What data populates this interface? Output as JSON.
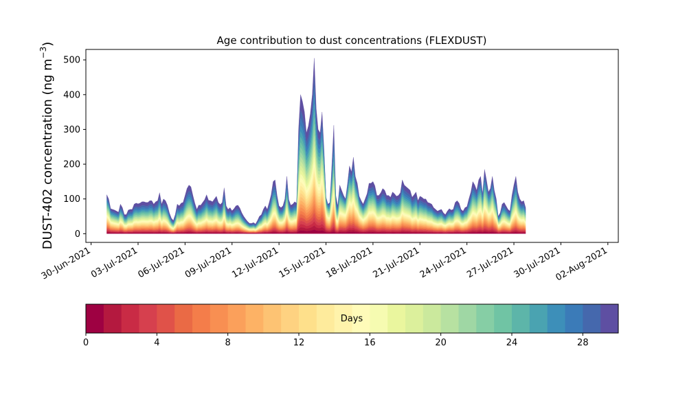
{
  "chart_data": {
    "type": "area",
    "title": "Age contribution to dust concentrations (FLEXDUST)",
    "ylabel_main": "DUST-402 concentration (ng m",
    "ylabel_exp": "−3",
    "ylabel_close": ")",
    "ylim": [
      -25,
      530
    ],
    "yticks": [
      "0",
      "100",
      "200",
      "300",
      "400",
      "500"
    ],
    "x_start": "2021-06-29T16:00",
    "x_end": "2021-08-02T16:00",
    "xticks": [
      "30-Jun-2021",
      "03-Jul-2021",
      "06-Jul-2021",
      "09-Jul-2021",
      "12-Jul-2021",
      "15-Jul-2021",
      "18-Jul-2021",
      "21-Jul-2021",
      "24-Jul-2021",
      "27-Jul-2021",
      "30-Jul-2021",
      "02-Aug-2021"
    ],
    "xtick_dates": [
      "2021-06-30",
      "2021-07-03",
      "2021-07-06",
      "2021-07-09",
      "2021-07-12",
      "2021-07-15",
      "2021-07-18",
      "2021-07-21",
      "2021-07-24",
      "2021-07-27",
      "2021-07-30",
      "2021-08-02"
    ],
    "series_start": "2021-07-01T00:00",
    "series_step_hours": 3,
    "total": [
      112,
      100,
      72,
      70,
      68,
      65,
      62,
      85,
      75,
      55,
      55,
      68,
      70,
      70,
      85,
      88,
      86,
      88,
      92,
      92,
      90,
      90,
      95,
      95,
      85,
      92,
      95,
      118,
      85,
      100,
      95,
      82,
      60,
      45,
      38,
      55,
      85,
      80,
      88,
      90,
      110,
      130,
      140,
      135,
      110,
      88,
      70,
      82,
      82,
      90,
      98,
      112,
      96,
      95,
      92,
      100,
      108,
      90,
      84,
      90,
      132,
      80,
      70,
      75,
      66,
      72,
      80,
      82,
      74,
      60,
      50,
      42,
      35,
      30,
      30,
      32,
      28,
      38,
      50,
      55,
      70,
      80,
      70,
      90,
      112,
      150,
      155,
      110,
      80,
      75,
      80,
      100,
      165,
      98,
      82,
      85,
      92,
      88,
      300,
      400,
      380,
      350,
      290,
      310,
      345,
      400,
      505,
      360,
      300,
      290,
      350,
      240,
      105,
      85,
      90,
      200,
      312,
      110,
      80,
      140,
      125,
      110,
      100,
      145,
      195,
      178,
      220,
      165,
      145,
      108,
      95,
      85,
      100,
      115,
      145,
      145,
      150,
      138,
      110,
      110,
      118,
      130,
      125,
      110,
      110,
      105,
      120,
      115,
      108,
      110,
      118,
      155,
      140,
      135,
      130,
      125,
      105,
      112,
      120,
      95,
      108,
      105,
      100,
      100,
      90,
      88,
      85,
      75,
      70,
      65,
      68,
      70,
      60,
      55,
      65,
      72,
      68,
      70,
      90,
      95,
      88,
      70,
      65,
      75,
      78,
      100,
      120,
      150,
      140,
      125,
      155,
      165,
      115,
      185,
      155,
      120,
      130,
      165,
      125,
      100,
      50,
      60,
      85,
      90,
      80,
      70,
      65,
      110,
      140,
      165,
      120,
      100,
      92,
      95,
      75
    ],
    "young": [
      60,
      55,
      40,
      35,
      30,
      28,
      25,
      25,
      22,
      18,
      16,
      15,
      14,
      14,
      14,
      14,
      13,
      13,
      13,
      13,
      13,
      13,
      12,
      12,
      12,
      12,
      12,
      12,
      11,
      11,
      10,
      10,
      8,
      6,
      5,
      5,
      5,
      5,
      5,
      5,
      6,
      6,
      6,
      6,
      5,
      5,
      5,
      5,
      5,
      5,
      5,
      5,
      5,
      5,
      5,
      5,
      5,
      5,
      5,
      5,
      5,
      5,
      5,
      5,
      4,
      4,
      4,
      4,
      4,
      4,
      4,
      3,
      3,
      3,
      3,
      3,
      3,
      3,
      3,
      3,
      4,
      5,
      7,
      10,
      14,
      18,
      22,
      25,
      25,
      25,
      25,
      26,
      28,
      30,
      30,
      28,
      30,
      40,
      60,
      80,
      90,
      95,
      100,
      105,
      110,
      115,
      120,
      130,
      140,
      160,
      180,
      180,
      160,
      110,
      70,
      35,
      10,
      10,
      30,
      55,
      75,
      90,
      100,
      105,
      110,
      105,
      100,
      90,
      80,
      70,
      60,
      50,
      45,
      45,
      45,
      45,
      45,
      40,
      35,
      30,
      28,
      25,
      25,
      25,
      25,
      25,
      25,
      25,
      25,
      25,
      25,
      25,
      25,
      25,
      25,
      22,
      20,
      20,
      20,
      20,
      20,
      18,
      18,
      18,
      18,
      18,
      18,
      18,
      18,
      18,
      18,
      18,
      18,
      18,
      18,
      18,
      18,
      18,
      20,
      20,
      20,
      22,
      25,
      25,
      28,
      30,
      32,
      35,
      40,
      45,
      50,
      55,
      60,
      65,
      70,
      70,
      70,
      60,
      50,
      40,
      30,
      25,
      20,
      20,
      20,
      20,
      20,
      20,
      20,
      22,
      25,
      25,
      28,
      30,
      30
    ],
    "colorbar": {
      "label": "Days",
      "ticks": [
        "0",
        "4",
        "8",
        "12",
        "16",
        "20",
        "24",
        "28"
      ],
      "min": 0,
      "max": 30,
      "n_levels": 30,
      "colors": [
        "#9e0142",
        "#b4193f",
        "#c92b45",
        "#d6404e",
        "#e05249",
        "#ea6a45",
        "#f47d4a",
        "#f88f52",
        "#fba05b",
        "#fdb265",
        "#fdc373",
        "#fed281",
        "#fee08b",
        "#feeb9c",
        "#fff3ab",
        "#fffbb9",
        "#f6fbb1",
        "#eaf69e",
        "#dcf09c",
        "#cbe99d",
        "#b7e1a1",
        "#9fd7a4",
        "#86cea5",
        "#70c4a4",
        "#5db5a9",
        "#4aa3b1",
        "#3d8fb9",
        "#3b7bb8",
        "#4568ad",
        "#5e4fa2"
      ]
    }
  }
}
